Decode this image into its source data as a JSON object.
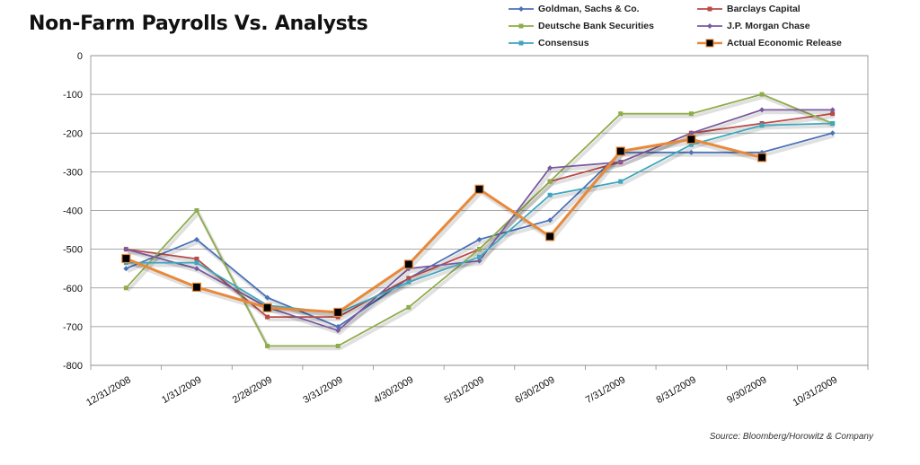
{
  "chart_data": {
    "type": "line",
    "title": "Non-Farm Payrolls Vs. Analysts",
    "xlabel": "",
    "ylabel": "",
    "ylim": [
      -800,
      0
    ],
    "yticks": [
      0,
      -100,
      -200,
      -300,
      -400,
      -500,
      -600,
      -700,
      -800
    ],
    "grid": "horizontal",
    "legend_position": "top-right",
    "categories": [
      "12/31/2008",
      "1/31/2009",
      "2/28/2009",
      "3/31/2009",
      "4/30/2009",
      "5/31/2009",
      "6/30/2009",
      "7/31/2009",
      "8/31/2009",
      "9/30/2009",
      "10/31/2009"
    ],
    "series": [
      {
        "name": "Goldman, Sachs & Co.",
        "color": "#4a72b8",
        "marker": "diamond",
        "values": [
          -550,
          -475,
          -625,
          -700,
          -575,
          -475,
          -425,
          -250,
          -250,
          -250,
          -200
        ]
      },
      {
        "name": "Barclays Capital",
        "color": "#b84a48",
        "marker": "square",
        "values": [
          -500,
          -525,
          -675,
          -675,
          -575,
          -500,
          -325,
          -275,
          -200,
          -175,
          -150
        ]
      },
      {
        "name": "Deutsche Bank Securities",
        "color": "#8fac4a",
        "marker": "square",
        "values": [
          -600,
          -400,
          -750,
          -750,
          -650,
          -500,
          -325,
          -150,
          -150,
          -100,
          -175
        ]
      },
      {
        "name": "J.P. Morgan Chase",
        "color": "#7a5a9e",
        "marker": "diamond",
        "values": [
          -500,
          -550,
          -650,
          -710,
          -550,
          -530,
          -290,
          -275,
          -200,
          -140,
          -140
        ]
      },
      {
        "name": "Consensus",
        "color": "#3fa6bd",
        "marker": "square",
        "values": [
          -535,
          -535,
          -645,
          -665,
          -585,
          -520,
          -360,
          -325,
          -230,
          -180,
          -175
        ]
      },
      {
        "name": "Actual Economic Release",
        "color": "#e8893a",
        "marker": "bigsquare",
        "values": [
          -524,
          -598,
          -651,
          -663,
          -539,
          -345,
          -467,
          -247,
          -216,
          -263,
          null
        ]
      }
    ]
  },
  "source": "Source: Bloomberg/Horowitz & Company"
}
